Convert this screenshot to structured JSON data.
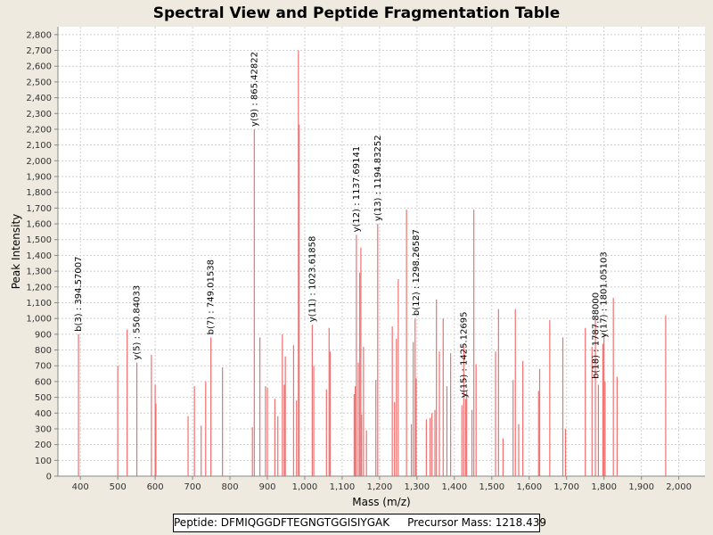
{
  "colors": {
    "background": "#eeeadf",
    "plot": "#ffffff",
    "peak": "#f07070",
    "grid": "#cfcfcf"
  },
  "footer": {
    "peptide": "Peptide: DFMIQGGDFTEGNGTGGISIYGAK",
    "precursor": "Precursor Mass: 1218.439"
  },
  "chart_data": {
    "type": "bar",
    "title": "Spectral View and Peptide Fragmentation Table",
    "xlabel": "Mass (m/z)",
    "ylabel": "Peak Intensity",
    "xlim": [
      340,
      2070
    ],
    "ylim": [
      0,
      2850
    ],
    "x_ticks": [
      400,
      500,
      600,
      700,
      800,
      900,
      1000,
      1100,
      1200,
      1300,
      1400,
      1500,
      1600,
      1700,
      1800,
      1900,
      2000
    ],
    "x_tick_labels": [
      "400",
      "500",
      "600",
      "700",
      "800",
      "900",
      "1,000",
      "1,100",
      "1,200",
      "1,300",
      "1,400",
      "1,500",
      "1,600",
      "1,700",
      "1,800",
      "1,900",
      "2,000"
    ],
    "y_ticks": [
      0,
      100,
      200,
      300,
      400,
      500,
      600,
      700,
      800,
      900,
      1000,
      1100,
      1200,
      1300,
      1400,
      1500,
      1600,
      1700,
      1800,
      1900,
      2000,
      2100,
      2200,
      2300,
      2400,
      2500,
      2600,
      2700,
      2800
    ],
    "y_tick_labels": [
      "0",
      "100",
      "200",
      "300",
      "400",
      "500",
      "600",
      "700",
      "800",
      "900",
      "1,000",
      "1,100",
      "1,200",
      "1,300",
      "1,400",
      "1,500",
      "1,600",
      "1,700",
      "1,800",
      "1,900",
      "2,000",
      "2,100",
      "2,200",
      "2,300",
      "2,400",
      "2,500",
      "2,600",
      "2,700",
      "2,800"
    ],
    "grid": true,
    "peaks": [
      {
        "mz": 395,
        "i": 900
      },
      {
        "mz": 500,
        "i": 700
      },
      {
        "mz": 525,
        "i": 930
      },
      {
        "mz": 551,
        "i": 720
      },
      {
        "mz": 590,
        "i": 770
      },
      {
        "mz": 600,
        "i": 580
      },
      {
        "mz": 602,
        "i": 460
      },
      {
        "mz": 688,
        "i": 380
      },
      {
        "mz": 705,
        "i": 570
      },
      {
        "mz": 723,
        "i": 320
      },
      {
        "mz": 735,
        "i": 600
      },
      {
        "mz": 749,
        "i": 880
      },
      {
        "mz": 780,
        "i": 690
      },
      {
        "mz": 860,
        "i": 310
      },
      {
        "mz": 865,
        "i": 2200
      },
      {
        "mz": 880,
        "i": 880
      },
      {
        "mz": 895,
        "i": 570
      },
      {
        "mz": 900,
        "i": 560
      },
      {
        "mz": 920,
        "i": 490
      },
      {
        "mz": 928,
        "i": 380
      },
      {
        "mz": 940,
        "i": 900
      },
      {
        "mz": 945,
        "i": 580
      },
      {
        "mz": 948,
        "i": 760
      },
      {
        "mz": 970,
        "i": 830
      },
      {
        "mz": 978,
        "i": 480
      },
      {
        "mz": 983,
        "i": 2700
      },
      {
        "mz": 985,
        "i": 2230
      },
      {
        "mz": 1020,
        "i": 960
      },
      {
        "mz": 1024,
        "i": 700
      },
      {
        "mz": 1058,
        "i": 550
      },
      {
        "mz": 1065,
        "i": 940
      },
      {
        "mz": 1068,
        "i": 790
      },
      {
        "mz": 1132,
        "i": 520
      },
      {
        "mz": 1135,
        "i": 570
      },
      {
        "mz": 1138,
        "i": 1530
      },
      {
        "mz": 1143,
        "i": 720
      },
      {
        "mz": 1147,
        "i": 1290
      },
      {
        "mz": 1150,
        "i": 1450
      },
      {
        "mz": 1152,
        "i": 390
      },
      {
        "mz": 1157,
        "i": 820
      },
      {
        "mz": 1165,
        "i": 290
      },
      {
        "mz": 1190,
        "i": 610
      },
      {
        "mz": 1195,
        "i": 1600
      },
      {
        "mz": 1234,
        "i": 950
      },
      {
        "mz": 1240,
        "i": 470
      },
      {
        "mz": 1245,
        "i": 870
      },
      {
        "mz": 1250,
        "i": 1250
      },
      {
        "mz": 1272,
        "i": 1690
      },
      {
        "mz": 1285,
        "i": 330
      },
      {
        "mz": 1290,
        "i": 850
      },
      {
        "mz": 1295,
        "i": 1000
      },
      {
        "mz": 1298,
        "i": 620
      },
      {
        "mz": 1325,
        "i": 360
      },
      {
        "mz": 1335,
        "i": 370
      },
      {
        "mz": 1340,
        "i": 400
      },
      {
        "mz": 1348,
        "i": 420
      },
      {
        "mz": 1352,
        "i": 1120
      },
      {
        "mz": 1360,
        "i": 790
      },
      {
        "mz": 1370,
        "i": 1000
      },
      {
        "mz": 1380,
        "i": 570
      },
      {
        "mz": 1390,
        "i": 780
      },
      {
        "mz": 1420,
        "i": 450
      },
      {
        "mz": 1425,
        "i": 830
      },
      {
        "mz": 1430,
        "i": 490
      },
      {
        "mz": 1433,
        "i": 540
      },
      {
        "mz": 1447,
        "i": 420
      },
      {
        "mz": 1452,
        "i": 1690
      },
      {
        "mz": 1458,
        "i": 710
      },
      {
        "mz": 1510,
        "i": 790
      },
      {
        "mz": 1518,
        "i": 1060
      },
      {
        "mz": 1530,
        "i": 240
      },
      {
        "mz": 1557,
        "i": 610
      },
      {
        "mz": 1563,
        "i": 1060
      },
      {
        "mz": 1572,
        "i": 330
      },
      {
        "mz": 1583,
        "i": 730
      },
      {
        "mz": 1625,
        "i": 540
      },
      {
        "mz": 1628,
        "i": 680
      },
      {
        "mz": 1655,
        "i": 990
      },
      {
        "mz": 1690,
        "i": 880
      },
      {
        "mz": 1697,
        "i": 300
      },
      {
        "mz": 1750,
        "i": 940
      },
      {
        "mz": 1768,
        "i": 820
      },
      {
        "mz": 1777,
        "i": 990
      },
      {
        "mz": 1785,
        "i": 580
      },
      {
        "mz": 1797,
        "i": 840
      },
      {
        "mz": 1800,
        "i": 900
      },
      {
        "mz": 1803,
        "i": 600
      },
      {
        "mz": 1825,
        "i": 1130
      },
      {
        "mz": 1835,
        "i": 630
      },
      {
        "mz": 1965,
        "i": 1020
      }
    ],
    "annotations": [
      {
        "text": "b(3) : 394.57007",
        "mz": 395,
        "i": 900
      },
      {
        "text": "y(5) : 550.84033",
        "mz": 551,
        "i": 720
      },
      {
        "text": "b(7) : 749.01538",
        "mz": 749,
        "i": 880
      },
      {
        "text": "y(9) : 865.42822",
        "mz": 865,
        "i": 2200
      },
      {
        "text": "y(11) : 1023.61858",
        "mz": 1020,
        "i": 960
      },
      {
        "text": "y(12) : 1137.69141",
        "mz": 1138,
        "i": 1530
      },
      {
        "text": "y(13) : 1194.83252",
        "mz": 1195,
        "i": 1600
      },
      {
        "text": "b(12) : 1298.26587",
        "mz": 1298,
        "i": 1000
      },
      {
        "text": "y(15) : 1425.12695",
        "mz": 1425,
        "i": 480
      },
      {
        "text": "b(18) : 1787.88000",
        "mz": 1778,
        "i": 600
      },
      {
        "text": "y(17) : 1801.05103",
        "mz": 1800,
        "i": 860
      }
    ]
  }
}
